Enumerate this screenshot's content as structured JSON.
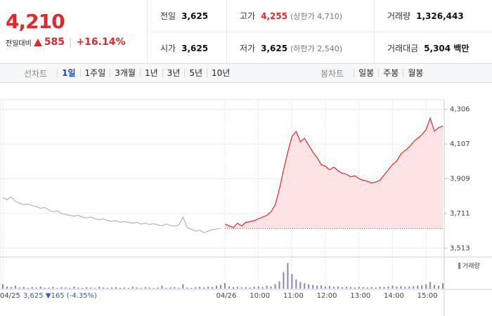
{
  "header": {
    "price": "4,210",
    "change_label": "전일대비",
    "change": "585",
    "rate": "+16.14%",
    "stats": [
      [
        {
          "label": "전일",
          "value": "3,625"
        },
        {
          "label": "고가",
          "value": "4,255",
          "note": "(상한가 4,710)"
        },
        {
          "label": "거래량",
          "value": "1,326,443"
        }
      ],
      [
        {
          "label": "시가",
          "value": "3,625"
        },
        {
          "label": "저가",
          "value": "3,625",
          "note": "(하한가 2,540)"
        },
        {
          "label": "거래대금",
          "value": "5,304 백만"
        }
      ]
    ]
  },
  "tabs": {
    "line_label": "선차트",
    "line": [
      "1일",
      "1주일",
      "3개월",
      "1년",
      "3년",
      "5년",
      "10년"
    ],
    "selected": 0,
    "candle_label": "봉차트",
    "candle": [
      "일봉",
      "주봉",
      "월봉"
    ]
  },
  "chart_data": {
    "type": "line",
    "categories": [
      "04/25",
      null,
      null,
      null,
      null,
      null,
      null,
      null,
      null,
      null,
      null,
      null,
      null,
      null,
      null,
      null,
      null,
      null,
      null,
      null,
      null,
      null,
      null,
      null,
      null,
      null,
      null,
      null,
      null,
      null,
      null,
      null,
      null,
      null,
      null,
      null,
      null,
      null,
      null,
      null,
      null,
      null,
      null,
      null,
      null,
      null,
      null,
      null,
      null,
      null,
      null,
      null,
      null,
      "04/26",
      null,
      null,
      null,
      null,
      null,
      null,
      null,
      "10:00",
      null,
      null,
      null,
      null,
      null,
      null,
      null,
      "11:00",
      null,
      null,
      null,
      null,
      null,
      null,
      null,
      "12:00",
      null,
      null,
      null,
      null,
      null,
      null,
      null,
      "13:00",
      null,
      null,
      null,
      null,
      null,
      null,
      null,
      "14:00",
      null,
      null,
      null,
      null,
      null,
      null,
      null,
      "15:00",
      null,
      null,
      null,
      null
    ],
    "series": [
      {
        "color": "#b4b4b4",
        "values": [
          3800,
          3790,
          3805,
          3780,
          3770,
          3760,
          3765,
          3755,
          3750,
          3740,
          3745,
          3730,
          3720,
          3725,
          3710,
          3705,
          3700,
          3695,
          3700,
          3690,
          3685,
          3690,
          3680,
          3675,
          3680,
          3670,
          3665,
          3670,
          3660,
          3665,
          3660,
          3655,
          3660,
          3650,
          3655,
          3648,
          3652,
          3645,
          3640,
          3650,
          3642,
          3638,
          3645,
          3690,
          3630,
          3620,
          3610,
          3615,
          3600,
          3610,
          3618,
          3622,
          3625,
          null,
          null,
          null,
          null,
          null,
          null,
          null,
          null,
          null,
          null,
          null,
          null,
          null,
          null,
          null,
          null,
          null,
          null,
          null,
          null,
          null,
          null,
          null,
          null,
          null,
          null,
          null,
          null,
          null,
          null,
          null,
          null,
          null,
          null,
          null,
          null,
          null,
          null,
          null,
          null,
          null,
          null,
          null,
          null,
          null,
          null,
          null,
          null,
          null,
          null,
          null,
          null,
          null
        ]
      },
      {
        "color": "#e5262b",
        "fill": "#fde4e4",
        "values": [
          null,
          null,
          null,
          null,
          null,
          null,
          null,
          null,
          null,
          null,
          null,
          null,
          null,
          null,
          null,
          null,
          null,
          null,
          null,
          null,
          null,
          null,
          null,
          null,
          null,
          null,
          null,
          null,
          null,
          null,
          null,
          null,
          null,
          null,
          null,
          null,
          null,
          null,
          null,
          null,
          null,
          null,
          null,
          null,
          null,
          null,
          null,
          null,
          null,
          null,
          null,
          null,
          null,
          3650,
          3640,
          3630,
          3655,
          3640,
          3660,
          3665,
          3670,
          3680,
          3690,
          3700,
          3720,
          3760,
          3850,
          3960,
          4060,
          4150,
          4180,
          4120,
          4140,
          4100,
          4060,
          4030,
          3990,
          3980,
          3960,
          3975,
          3955,
          3940,
          3935,
          3920,
          3925,
          3910,
          3900,
          3895,
          3885,
          3890,
          3900,
          3930,
          3960,
          3990,
          4010,
          4050,
          4070,
          4090,
          4120,
          4140,
          4160,
          4190,
          4255,
          4180,
          4200,
          4210
        ]
      }
    ],
    "baseline": 3625,
    "ylim": [
      3470,
      4360
    ],
    "yticks": [
      {
        "value": 4306,
        "label": "4,306"
      },
      {
        "value": 4107,
        "label": "4,107"
      },
      {
        "value": 3909,
        "label": "3,909"
      },
      {
        "value": 3711,
        "label": "3,711"
      },
      {
        "value": 3513,
        "label": "3,513"
      }
    ],
    "volume": {
      "name": "거래량",
      "color": "#8f7fbf",
      "values": [
        12,
        6,
        4,
        8,
        3,
        5,
        2,
        4,
        3,
        6,
        2,
        3,
        5,
        2,
        4,
        3,
        2,
        6,
        3,
        2,
        4,
        3,
        2,
        5,
        3,
        2,
        3,
        4,
        2,
        3,
        2,
        5,
        3,
        2,
        4,
        3,
        2,
        3,
        8,
        2,
        3,
        4,
        2,
        12,
        3,
        2,
        4,
        5,
        3,
        6,
        4,
        8,
        10,
        15,
        6,
        4,
        5,
        3,
        4,
        3,
        5,
        6,
        4,
        8,
        6,
        12,
        20,
        45,
        70,
        40,
        25,
        18,
        15,
        12,
        10,
        8,
        9,
        6,
        7,
        5,
        6,
        4,
        5,
        4,
        3,
        5,
        4,
        3,
        4,
        3,
        5,
        4,
        6,
        8,
        6,
        7,
        5,
        6,
        7,
        8,
        9,
        12,
        18,
        10,
        8,
        15
      ]
    },
    "vlim": [
      0,
      75
    ],
    "note": "3,625 ▼165 (-4.35%)"
  }
}
